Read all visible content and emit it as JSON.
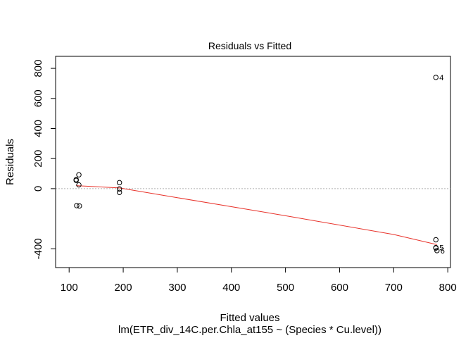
{
  "chart_data": {
    "type": "scatter",
    "title": "Residuals vs Fitted",
    "xlabel": "Fitted values",
    "subtitle": "lm(ETR_div_14C.per.Chla_at155 ~ (Species * Cu.level))",
    "ylabel": "Residuals",
    "xlim": [
      75,
      805
    ],
    "ylim": [
      -525,
      880
    ],
    "x_ticks": [
      100,
      200,
      300,
      400,
      500,
      600,
      700,
      800
    ],
    "y_ticks": [
      -400,
      0,
      200,
      400,
      600,
      800
    ],
    "y_tick_labels": [
      "-400",
      "0",
      "200",
      "400",
      "600",
      "800"
    ],
    "grid": false,
    "reference_line": 0,
    "points": [
      {
        "x": 113,
        "y": 60
      },
      {
        "x": 113,
        "y": 55
      },
      {
        "x": 118,
        "y": 92
      },
      {
        "x": 118,
        "y": 25
      },
      {
        "x": 114,
        "y": -113
      },
      {
        "x": 119,
        "y": -115
      },
      {
        "x": 193,
        "y": 40
      },
      {
        "x": 193,
        "y": -2
      },
      {
        "x": 193,
        "y": -25
      },
      {
        "x": 778,
        "y": 740,
        "label": "4"
      },
      {
        "x": 778,
        "y": -340
      },
      {
        "x": 778,
        "y": -392,
        "label": "5"
      },
      {
        "x": 778,
        "y": -395
      },
      {
        "x": 780,
        "y": -412,
        "label": "6"
      }
    ],
    "smooth_line": [
      {
        "x": 113,
        "y": 20
      },
      {
        "x": 118,
        "y": 19
      },
      {
        "x": 193,
        "y": 5
      },
      {
        "x": 300,
        "y": -60
      },
      {
        "x": 500,
        "y": -180
      },
      {
        "x": 700,
        "y": -305
      },
      {
        "x": 780,
        "y": -372
      }
    ],
    "colors": {
      "points": "#000000",
      "smooth": "#e8322a",
      "reference": "#b0b0b0"
    }
  }
}
